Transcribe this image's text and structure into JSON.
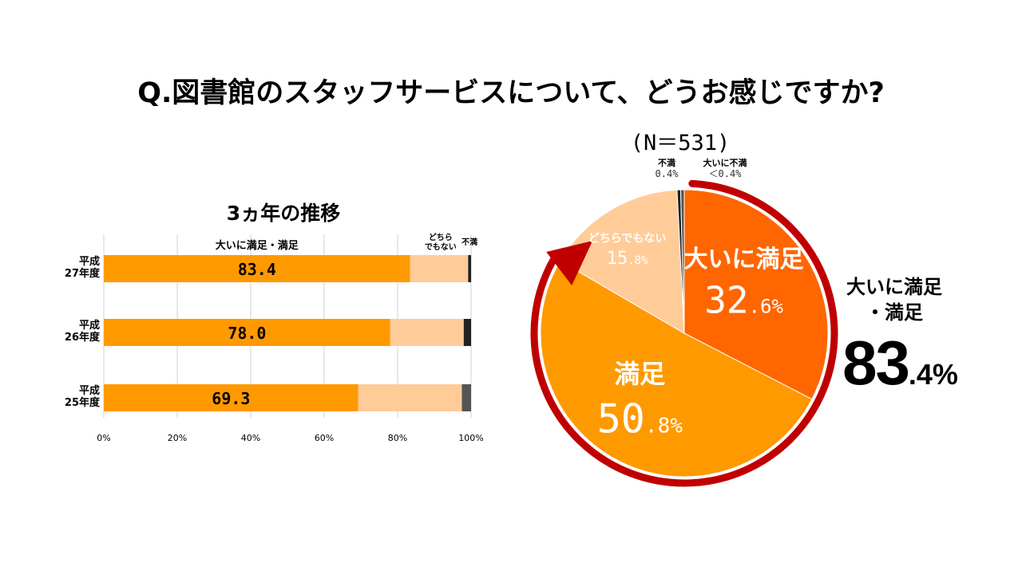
{
  "title": "Q.図書館のスタッフサービスについて、どうお感じですか?",
  "colors": {
    "very_satisfied": "#FF6600",
    "satisfied": "#FF9900",
    "neutral": "#FFCC99",
    "dissatisfied": "#222222",
    "very_dissatisfied": "#555555",
    "arrow": "#C00000"
  },
  "chart_data": [
    {
      "type": "bar",
      "orientation": "horizontal-stacked",
      "title": "3ヵ年の推移",
      "categories": [
        "平成\n27年度",
        "平成\n26年度",
        "平成\n25年度"
      ],
      "segment_labels": [
        "大いに満足・満足",
        "どちら\nでもない",
        "不満"
      ],
      "series": [
        {
          "name": "大いに満足・満足",
          "values": [
            83.4,
            78.0,
            69.3
          ],
          "data_labels": [
            "83.4",
            "78.0",
            "69.3"
          ]
        },
        {
          "name": "どちらでもない",
          "values": [
            15.8,
            20.0,
            28.2
          ]
        },
        {
          "name": "不満",
          "values": [
            0.8,
            2.0,
            2.5
          ]
        }
      ],
      "xlim": [
        0,
        100
      ],
      "xticks": [
        "0%",
        "20%",
        "40%",
        "60%",
        "80%",
        "100%"
      ],
      "grid": true
    },
    {
      "type": "pie",
      "note": "(N＝531)",
      "slices": [
        {
          "name": "大いに満足",
          "value": 32.6,
          "label_num": "32",
          "label_dec": ".6%"
        },
        {
          "name": "満足",
          "value": 50.8,
          "label_num": "50",
          "label_dec": ".8%"
        },
        {
          "name": "どちらでもない",
          "value": 15.8,
          "label_num": "15",
          "label_dec": ".8%"
        },
        {
          "name": "不満",
          "value": 0.4,
          "label_num": "0.4%",
          "label_dec": ""
        },
        {
          "name": "大いに不満",
          "value": 0.4,
          "label_num": "＜0.4%",
          "label_dec": ""
        }
      ],
      "total_label_lines": [
        "大いに満足",
        "・満足"
      ],
      "total_value_num": "83",
      "total_value_dec": ".4%"
    }
  ]
}
